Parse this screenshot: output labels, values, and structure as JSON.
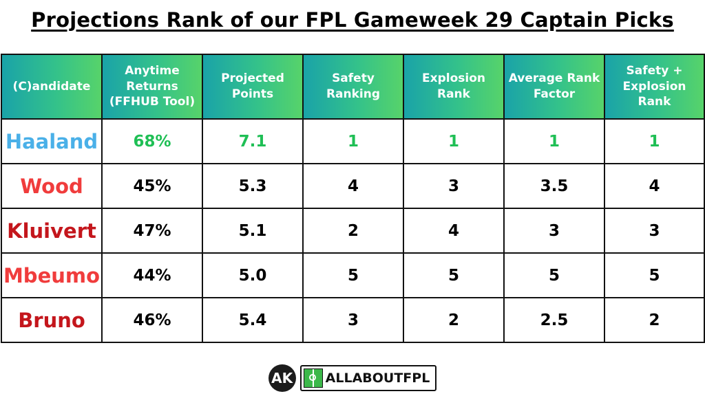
{
  "title": "Projections Rank of our FPL Gameweek 29 Captain Picks",
  "headers": [
    "(C)andidate",
    "Anytime Returns (FFHUB Tool)",
    "Projected Points",
    "Safety Ranking",
    "Explosion Rank",
    "Average Rank Factor",
    "Safety + Explosion Rank"
  ],
  "rows": [
    {
      "name": "Haaland",
      "anytime": "68%",
      "projected": "7.1",
      "safety": "1",
      "explosion": "1",
      "average": "1",
      "combined": "1"
    },
    {
      "name": "Wood",
      "anytime": "45%",
      "projected": "5.3",
      "safety": "4",
      "explosion": "3",
      "average": "3.5",
      "combined": "4"
    },
    {
      "name": "Kluivert",
      "anytime": "47%",
      "projected": "5.1",
      "safety": "2",
      "explosion": "4",
      "average": "3",
      "combined": "3"
    },
    {
      "name": "Mbeumo",
      "anytime": "44%",
      "projected": "5.0",
      "safety": "5",
      "explosion": "5",
      "average": "5",
      "combined": "5"
    },
    {
      "name": "Bruno",
      "anytime": "46%",
      "projected": "5.4",
      "safety": "3",
      "explosion": "2",
      "average": "2.5",
      "combined": "2"
    }
  ],
  "colors": {
    "header_gradient_start": "#1aa3a8",
    "header_gradient_end": "#57d36a",
    "top_value": "#1fbf55",
    "haaland": "#4ab0e8",
    "wood": "#f03c3c",
    "kluivert": "#c4161c",
    "mbeumo": "#f03c3c",
    "bruno": "#c4161c"
  },
  "footer": {
    "logo_initials": "AK",
    "brand": "ALLABOUTFPL"
  }
}
